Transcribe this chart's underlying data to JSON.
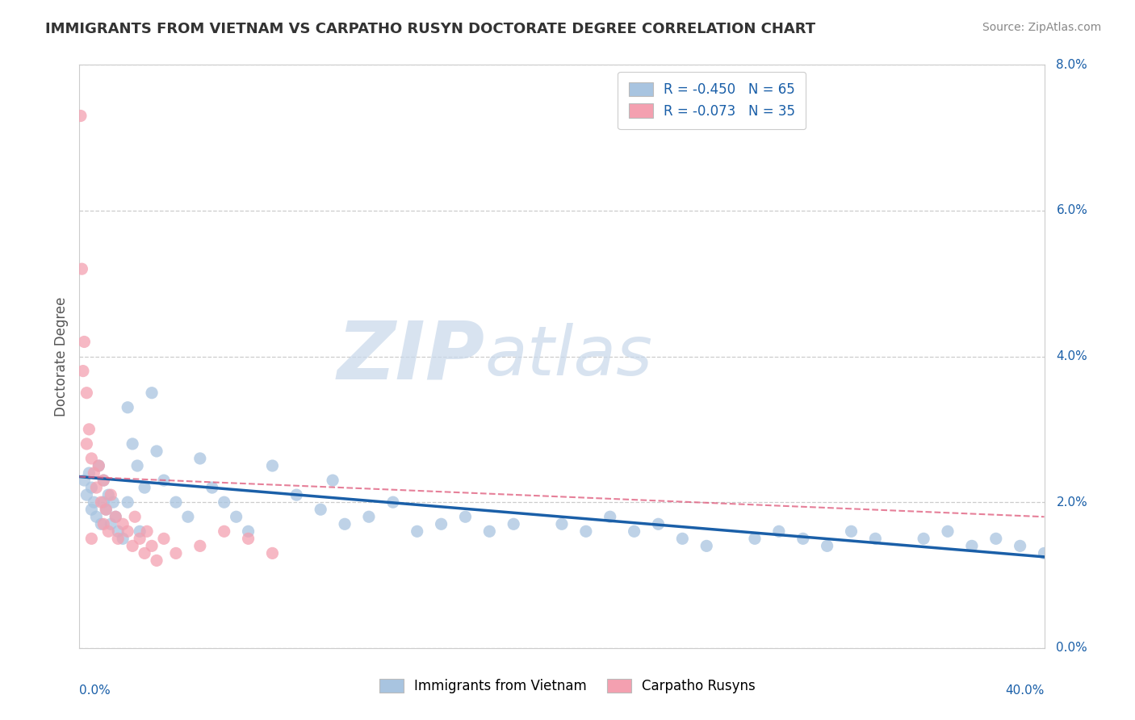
{
  "title": "IMMIGRANTS FROM VIETNAM VS CARPATHO RUSYN DOCTORATE DEGREE CORRELATION CHART",
  "source": "Source: ZipAtlas.com",
  "ylabel": "Doctorate Degree",
  "legend1_label": "R = -0.450   N = 65",
  "legend2_label": "R = -0.073   N = 35",
  "bottom_legend1": "Immigrants from Vietnam",
  "bottom_legend2": "Carpatho Rusyns",
  "blue_color": "#a8c4e0",
  "pink_color": "#f4a0b0",
  "blue_line_color": "#1a5fa8",
  "pink_line_color": "#e06080",
  "grid_color": "#cccccc",
  "title_color": "#333333",
  "background_color": "#ffffff",
  "xlim": [
    0,
    40
  ],
  "ylim": [
    0,
    8
  ],
  "y_ticks": [
    0,
    2,
    4,
    6,
    8
  ],
  "y_tick_labels": [
    "0.0%",
    "2.0%",
    "4.0%",
    "6.0%",
    "8.0%"
  ],
  "x_tick_labels": [
    "0.0%",
    "40.0%"
  ],
  "watermark_zip": "ZIP",
  "watermark_atlas": "atlas",
  "vietnam_scatter_x": [
    0.2,
    0.3,
    0.4,
    0.5,
    0.5,
    0.6,
    0.7,
    0.8,
    0.9,
    1.0,
    1.0,
    1.1,
    1.2,
    1.3,
    1.4,
    1.5,
    1.6,
    1.8,
    2.0,
    2.0,
    2.2,
    2.4,
    2.5,
    2.7,
    3.0,
    3.2,
    3.5,
    4.0,
    4.5,
    5.0,
    5.5,
    6.0,
    6.5,
    7.0,
    8.0,
    9.0,
    10.0,
    10.5,
    11.0,
    12.0,
    13.0,
    14.0,
    15.0,
    16.0,
    17.0,
    18.0,
    20.0,
    21.0,
    22.0,
    23.0,
    24.0,
    25.0,
    26.0,
    28.0,
    29.0,
    30.0,
    31.0,
    32.0,
    33.0,
    35.0,
    36.0,
    37.0,
    38.0,
    39.0,
    40.0
  ],
  "vietnam_scatter_y": [
    2.3,
    2.1,
    2.4,
    1.9,
    2.2,
    2.0,
    1.8,
    2.5,
    1.7,
    2.0,
    2.3,
    1.9,
    2.1,
    1.7,
    2.0,
    1.8,
    1.6,
    1.5,
    3.3,
    2.0,
    2.8,
    2.5,
    1.6,
    2.2,
    3.5,
    2.7,
    2.3,
    2.0,
    1.8,
    2.6,
    2.2,
    2.0,
    1.8,
    1.6,
    2.5,
    2.1,
    1.9,
    2.3,
    1.7,
    1.8,
    2.0,
    1.6,
    1.7,
    1.8,
    1.6,
    1.7,
    1.7,
    1.6,
    1.8,
    1.6,
    1.7,
    1.5,
    1.4,
    1.5,
    1.6,
    1.5,
    1.4,
    1.6,
    1.5,
    1.5,
    1.6,
    1.4,
    1.5,
    1.4,
    1.3
  ],
  "rusyn_scatter_x": [
    0.05,
    0.1,
    0.15,
    0.2,
    0.3,
    0.3,
    0.4,
    0.5,
    0.5,
    0.6,
    0.7,
    0.8,
    0.9,
    1.0,
    1.0,
    1.1,
    1.2,
    1.3,
    1.5,
    1.6,
    1.8,
    2.0,
    2.2,
    2.3,
    2.5,
    2.7,
    2.8,
    3.0,
    3.2,
    3.5,
    4.0,
    5.0,
    6.0,
    7.0,
    8.0
  ],
  "rusyn_scatter_y": [
    7.3,
    5.2,
    3.8,
    4.2,
    3.5,
    2.8,
    3.0,
    2.6,
    1.5,
    2.4,
    2.2,
    2.5,
    2.0,
    2.3,
    1.7,
    1.9,
    1.6,
    2.1,
    1.8,
    1.5,
    1.7,
    1.6,
    1.4,
    1.8,
    1.5,
    1.3,
    1.6,
    1.4,
    1.2,
    1.5,
    1.3,
    1.4,
    1.6,
    1.5,
    1.3
  ],
  "viet_trend_x0": 0,
  "viet_trend_y0": 2.35,
  "viet_trend_x1": 40,
  "viet_trend_y1": 1.25,
  "rusyn_trend_x0": 0,
  "rusyn_trend_y0": 2.35,
  "rusyn_trend_x1": 40,
  "rusyn_trend_y1": 1.8
}
